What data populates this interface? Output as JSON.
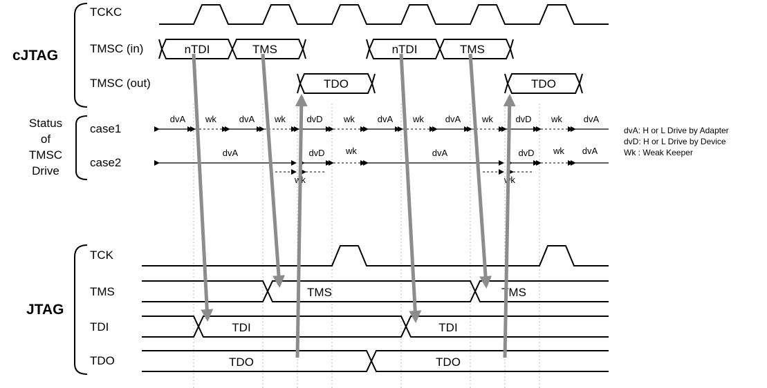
{
  "groups": {
    "cjtag": "cJTAG",
    "jtag": "JTAG"
  },
  "status_label": {
    "line1": "Status",
    "line2": "of",
    "line3": "TMSC",
    "line4": "Drive"
  },
  "signals": {
    "tckc": "TCKC",
    "tmsc_in": "TMSC (in)",
    "tmsc_out": "TMSC (out)",
    "case1": "case1",
    "case2": "case2",
    "tck": "TCK",
    "tms": "TMS",
    "tdi": "TDI",
    "tdo": "TDO"
  },
  "bus_labels": {
    "tmsc_in": [
      "nTDI",
      "TMS",
      "nTDI",
      "TMS"
    ],
    "tmsc_out": [
      "TDO",
      "TDO"
    ],
    "tms": [
      "TMS",
      "TMS"
    ],
    "tdi": [
      "TDI",
      "TDI"
    ],
    "tdo": [
      "TDO",
      "TDO"
    ]
  },
  "case1_labels": [
    "dvA",
    "wk",
    "dvA",
    "wk",
    "dvD",
    "wk",
    "dvA",
    "wk",
    "dvA",
    "wk",
    "dvD",
    "wk",
    "dvA"
  ],
  "case2_labels": [
    "dvA",
    "wk",
    "dvD",
    "wk",
    "dvA",
    "wk",
    "dvD",
    "wk",
    "dvA"
  ],
  "legend": [
    "dvA: H or L Drive by Adapter",
    "dvD: H or L Drive by Device",
    "Wk : Weak Keeper"
  ]
}
